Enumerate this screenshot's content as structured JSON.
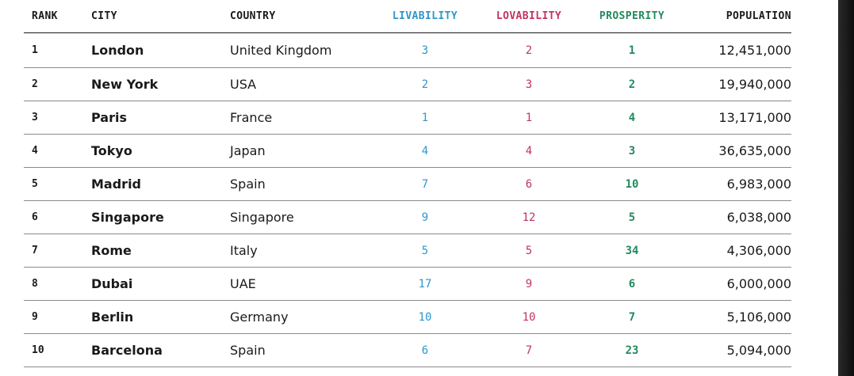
{
  "colors": {
    "livability": "#2f97c9",
    "lovability": "#c2345e",
    "prosperity": "#238a5e"
  },
  "headers": {
    "rank": "RANK",
    "city": "CITY",
    "country": "COUNTRY",
    "livability": "LIVABILITY",
    "lovability": "LOVABILITY",
    "prosperity": "PROSPERITY",
    "population": "POPULATION"
  },
  "rows": [
    {
      "rank": "1",
      "city": "London",
      "country": "United Kingdom",
      "livability": "3",
      "lovability": "2",
      "prosperity": "1",
      "population": "12,451,000"
    },
    {
      "rank": "2",
      "city": "New York",
      "country": "USA",
      "livability": "2",
      "lovability": "3",
      "prosperity": "2",
      "population": "19,940,000"
    },
    {
      "rank": "3",
      "city": "Paris",
      "country": "France",
      "livability": "1",
      "lovability": "1",
      "prosperity": "4",
      "population": "13,171,000"
    },
    {
      "rank": "4",
      "city": "Tokyo",
      "country": "Japan",
      "livability": "4",
      "lovability": "4",
      "prosperity": "3",
      "population": "36,635,000"
    },
    {
      "rank": "5",
      "city": "Madrid",
      "country": "Spain",
      "livability": "7",
      "lovability": "6",
      "prosperity": "10",
      "population": "6,983,000"
    },
    {
      "rank": "6",
      "city": "Singapore",
      "country": "Singapore",
      "livability": "9",
      "lovability": "12",
      "prosperity": "5",
      "population": "6,038,000"
    },
    {
      "rank": "7",
      "city": "Rome",
      "country": "Italy",
      "livability": "5",
      "lovability": "5",
      "prosperity": "34",
      "population": "4,306,000"
    },
    {
      "rank": "8",
      "city": "Dubai",
      "country": "UAE",
      "livability": "17",
      "lovability": "9",
      "prosperity": "6",
      "population": "6,000,000"
    },
    {
      "rank": "9",
      "city": "Berlin",
      "country": "Germany",
      "livability": "10",
      "lovability": "10",
      "prosperity": "7",
      "population": "5,106,000"
    },
    {
      "rank": "10",
      "city": "Barcelona",
      "country": "Spain",
      "livability": "6",
      "lovability": "7",
      "prosperity": "23",
      "population": "5,094,000"
    }
  ]
}
